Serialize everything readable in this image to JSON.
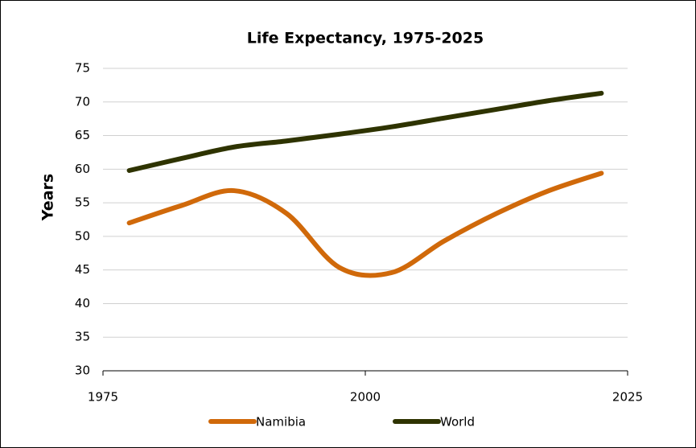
{
  "chart_data": {
    "type": "line",
    "title": "Life Expectancy, 1975-2025",
    "y_label": "Years",
    "x": [
      1977.5,
      1982.5,
      1987.5,
      1992.5,
      1997.5,
      2002.5,
      2007.5,
      2012.5,
      2017.5,
      2022.5
    ],
    "series": [
      {
        "name": "Namibia",
        "color": "#d0690a",
        "values": [
          52.0,
          54.6,
          56.8,
          53.4,
          45.4,
          44.6,
          49.3,
          53.4,
          56.8,
          59.4
        ]
      },
      {
        "name": "World",
        "color": "#2e3300",
        "values": [
          59.8,
          61.6,
          63.3,
          64.2,
          65.2,
          66.3,
          67.6,
          68.9,
          70.2,
          71.3
        ]
      }
    ],
    "xlim": [
      1975,
      2025
    ],
    "xticks": [
      1975,
      2000,
      2025
    ],
    "ylim": [
      30,
      75
    ],
    "yticks": [
      30,
      35,
      40,
      45,
      50,
      55,
      60,
      65,
      70,
      75
    ],
    "grid": true,
    "legend": "bottom"
  }
}
